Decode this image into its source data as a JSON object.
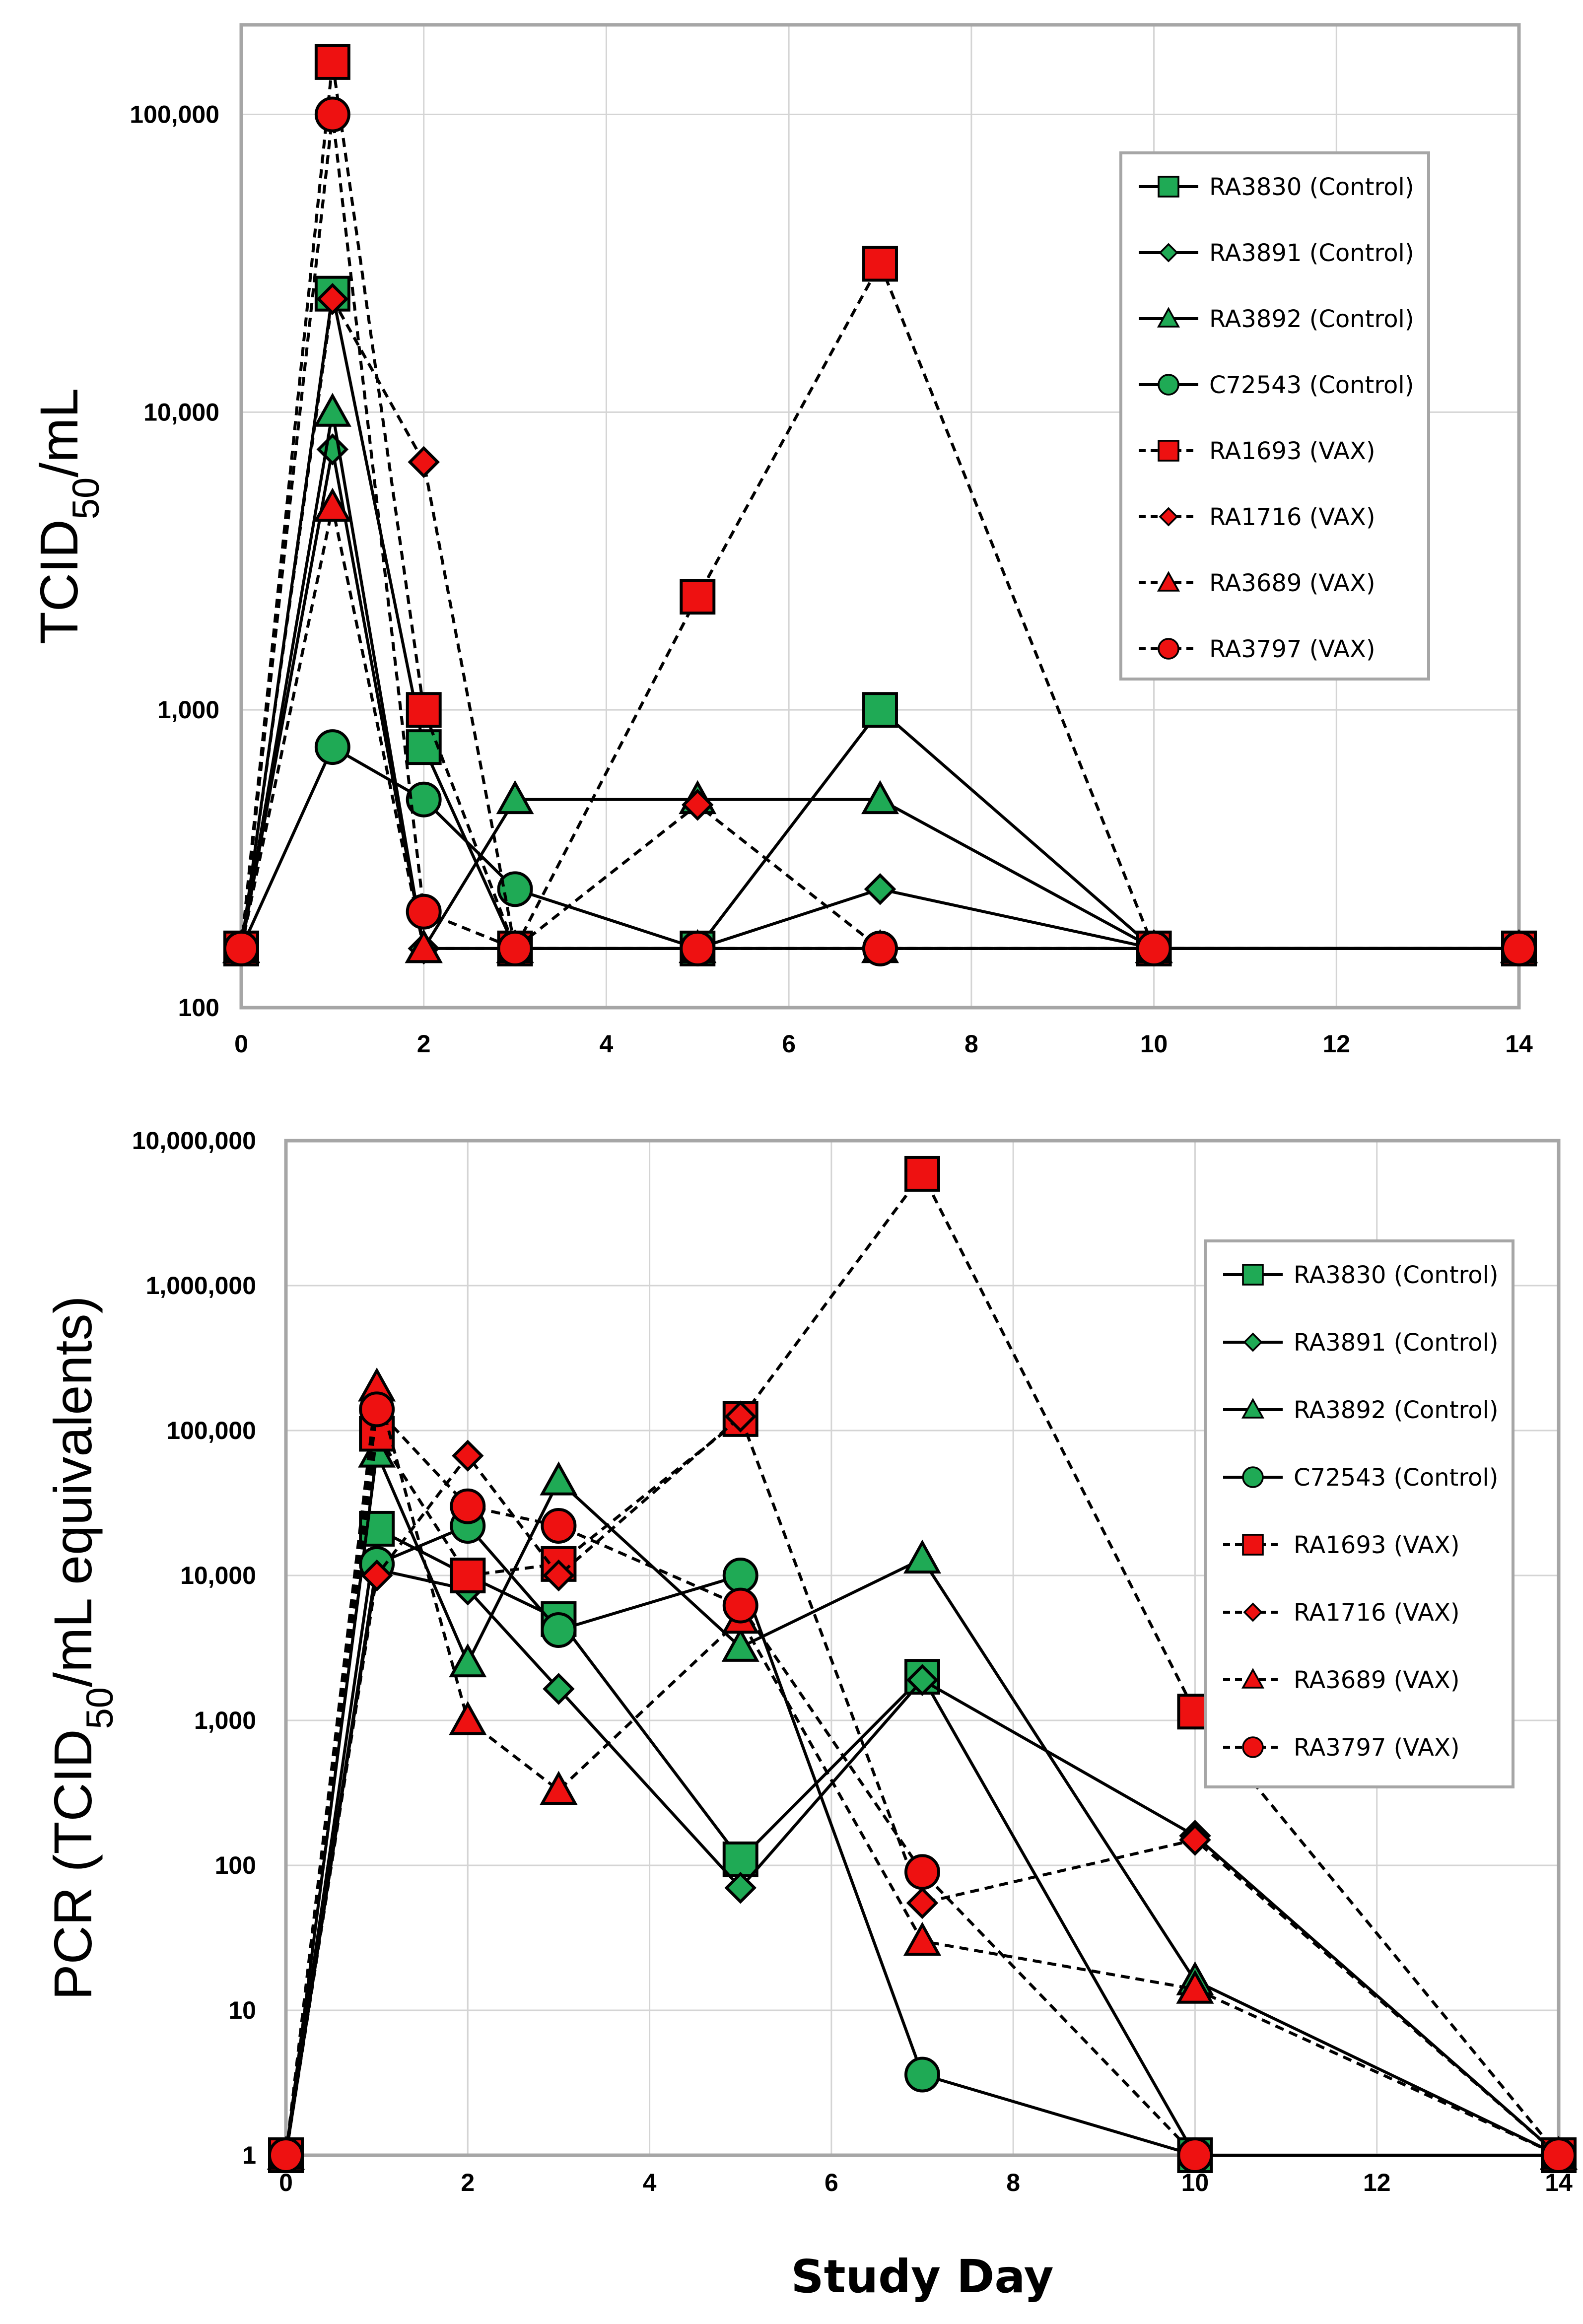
{
  "colors": {
    "control": "#1faa55",
    "vax": "#ee1111",
    "stroke": "#000000"
  },
  "chart_data": [
    {
      "type": "line",
      "yscale": "log",
      "title": "",
      "xlabel": "",
      "ylabel_main": "TCID",
      "ylabel_sub": "50",
      "ylabel_tail": "/mL",
      "xlim": [
        0,
        14
      ],
      "ylim": [
        100,
        200000
      ],
      "xticks": [
        0,
        2,
        4,
        6,
        8,
        10,
        12,
        14
      ],
      "xtick_labels": [
        "0",
        "2",
        "4",
        "6",
        "8",
        "10",
        "12",
        "14"
      ],
      "yticks": [
        100,
        1000,
        10000,
        100000
      ],
      "ytick_labels": [
        "100",
        "1,000",
        "10,000",
        "100,000"
      ],
      "legend_position": "top-right",
      "series": [
        {
          "name": "RA3830 (Control)",
          "group": "control",
          "marker": "square",
          "dash": "solid",
          "x": [
            0,
            1,
            2,
            3,
            5,
            7,
            10,
            14
          ],
          "y": [
            158,
            25000,
            750,
            158,
            158,
            1000,
            158,
            158
          ]
        },
        {
          "name": "RA3891 (Control)",
          "group": "control",
          "marker": "diamond",
          "dash": "solid",
          "x": [
            0,
            1,
            2,
            3,
            5,
            7,
            10,
            14
          ],
          "y": [
            158,
            7500,
            158,
            158,
            158,
            250,
            158,
            158
          ]
        },
        {
          "name": "RA3892 (Control)",
          "group": "control",
          "marker": "triangle",
          "dash": "solid",
          "x": [
            0,
            1,
            2,
            3,
            5,
            7,
            10,
            14
          ],
          "y": [
            158,
            10000,
            158,
            500,
            500,
            500,
            158,
            158
          ]
        },
        {
          "name": "C72543 (Control)",
          "group": "control",
          "marker": "circle",
          "dash": "solid",
          "x": [
            0,
            1,
            2,
            3,
            5,
            7,
            10,
            14
          ],
          "y": [
            158,
            750,
            500,
            250,
            158,
            158,
            158,
            158
          ]
        },
        {
          "name": "RA1693 (VAX)",
          "group": "vax",
          "marker": "square",
          "dash": "dashed",
          "x": [
            0,
            1,
            2,
            3,
            5,
            7,
            10,
            14
          ],
          "y": [
            158,
            150000,
            1000,
            158,
            2400,
            31500,
            158,
            158
          ]
        },
        {
          "name": "RA1716 (VAX)",
          "group": "vax",
          "marker": "diamond",
          "dash": "dashed",
          "x": [
            0,
            1,
            2,
            3,
            5,
            7,
            10,
            14
          ],
          "y": [
            158,
            24000,
            6800,
            158,
            480,
            158,
            158,
            158
          ]
        },
        {
          "name": "RA3689 (VAX)",
          "group": "vax",
          "marker": "triangle",
          "dash": "dashed",
          "x": [
            0,
            1,
            2,
            3,
            5,
            7,
            10,
            14
          ],
          "y": [
            158,
            4800,
            158,
            158,
            158,
            158,
            158,
            158
          ]
        },
        {
          "name": "RA3797 (VAX)",
          "group": "vax",
          "marker": "circle",
          "dash": "dashed",
          "x": [
            0,
            1,
            2,
            3,
            5,
            7,
            10,
            14
          ],
          "y": [
            158,
            100000,
            210,
            158,
            158,
            158,
            158,
            158
          ]
        }
      ]
    },
    {
      "type": "line",
      "yscale": "log",
      "title": "",
      "xlabel": "Study Day",
      "ylabel_main": "PCR (TCID",
      "ylabel_sub": "50",
      "ylabel_tail": "/mL equivalents)",
      "xlim": [
        0,
        14
      ],
      "ylim": [
        1,
        10000000
      ],
      "xticks": [
        0,
        2,
        4,
        6,
        8,
        10,
        12,
        14
      ],
      "xtick_labels": [
        "0",
        "2",
        "4",
        "6",
        "8",
        "10",
        "12",
        "14"
      ],
      "yticks": [
        1,
        10,
        100,
        1000,
        10000,
        100000,
        1000000,
        10000000
      ],
      "ytick_labels": [
        "1",
        "10",
        "100",
        "1,000",
        "10,000",
        "100,000",
        "1,000,000",
        "10,000,000"
      ],
      "legend_position": "right",
      "series": [
        {
          "name": "RA3830 (Control)",
          "group": "control",
          "marker": "square",
          "dash": "solid",
          "x": [
            0,
            1,
            2,
            3,
            5,
            7,
            10,
            14
          ],
          "y": [
            1,
            21000,
            10000,
            5000,
            110,
            2000,
            1,
            1
          ]
        },
        {
          "name": "RA3891 (Control)",
          "group": "control",
          "marker": "diamond",
          "dash": "solid",
          "x": [
            0,
            1,
            2,
            3,
            5,
            7,
            10,
            14
          ],
          "y": [
            1,
            11000,
            8000,
            1650,
            70,
            1900,
            160,
            1
          ]
        },
        {
          "name": "RA3892 (Control)",
          "group": "control",
          "marker": "triangle",
          "dash": "solid",
          "x": [
            0,
            1,
            2,
            3,
            5,
            7,
            10,
            14
          ],
          "y": [
            1,
            70000,
            2500,
            45000,
            3200,
            13000,
            16,
            1
          ]
        },
        {
          "name": "C72543 (Control)",
          "group": "control",
          "marker": "circle",
          "dash": "solid",
          "x": [
            0,
            1,
            2,
            3,
            5,
            7,
            10,
            14
          ],
          "y": [
            1,
            12000,
            22000,
            4200,
            10000,
            3.6,
            1,
            1
          ]
        },
        {
          "name": "RA1693 (VAX)",
          "group": "vax",
          "marker": "square",
          "dash": "dashed",
          "x": [
            0,
            1,
            2,
            3,
            5,
            7,
            10,
            14
          ],
          "y": [
            1,
            95000,
            10000,
            12000,
            120000,
            5900000,
            1150,
            1
          ]
        },
        {
          "name": "RA1716 (VAX)",
          "group": "vax",
          "marker": "diamond",
          "dash": "dashed",
          "x": [
            0,
            1,
            2,
            3,
            5,
            7,
            10,
            14
          ],
          "y": [
            1,
            10000,
            67000,
            10000,
            125000,
            55,
            150,
            1
          ]
        },
        {
          "name": "RA3689 (VAX)",
          "group": "vax",
          "marker": "triangle",
          "dash": "dashed",
          "x": [
            0,
            1,
            2,
            3,
            5,
            7,
            10,
            14
          ],
          "y": [
            1,
            200000,
            1000,
            330,
            5000,
            30,
            14,
            1
          ]
        },
        {
          "name": "RA3797 (VAX)",
          "group": "vax",
          "marker": "circle",
          "dash": "dashed",
          "x": [
            0,
            1,
            2,
            3,
            5,
            7,
            10,
            14
          ],
          "y": [
            1,
            140000,
            30000,
            22000,
            6200,
            90,
            1,
            1
          ]
        }
      ]
    }
  ]
}
